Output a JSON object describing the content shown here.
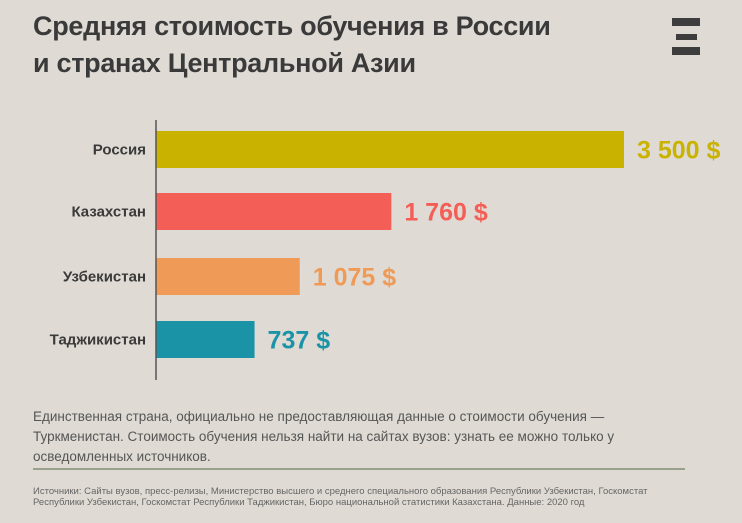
{
  "header": {
    "title_line1": "Средняя стоимость обучения в России",
    "title_line2": "и странах Центральной Азии",
    "logo_icon": "three-bars-logo-icon"
  },
  "chart_data": {
    "type": "bar",
    "orientation": "horizontal",
    "title": "Средняя стоимость обучения в России и странах Центральной Азии",
    "categories": [
      "Россия",
      "Казахстан",
      "Узбекистан",
      "Таджикистан"
    ],
    "values": [
      3500,
      1760,
      1075,
      737
    ],
    "data_labels": [
      "3 500 $",
      "1 760 $",
      "1 075 $",
      "737 $"
    ],
    "colors": [
      "#c9b300",
      "#f35e57",
      "#ef9a56",
      "#1b93a7"
    ],
    "unit": "$",
    "xlim": [
      0,
      3500
    ],
    "grid": false
  },
  "footer": {
    "note": "Единственная страна, официально не предоставляющая данные о стоимости обучения — Туркменистан. Стоимость обучения нельзя найти на сайтах вузов: узнать ее можно только у осведомленных источников.",
    "sources": "Источники: Сайты вузов, пресс-релизы, Министерство высшего и среднего специального образования Республики Узбекистан, Госкомстат Республики Узбекистан, Госкомстат  Республики Таджикистан, Бюро национальной статистики Казахстана. Данные: 2020 год"
  }
}
